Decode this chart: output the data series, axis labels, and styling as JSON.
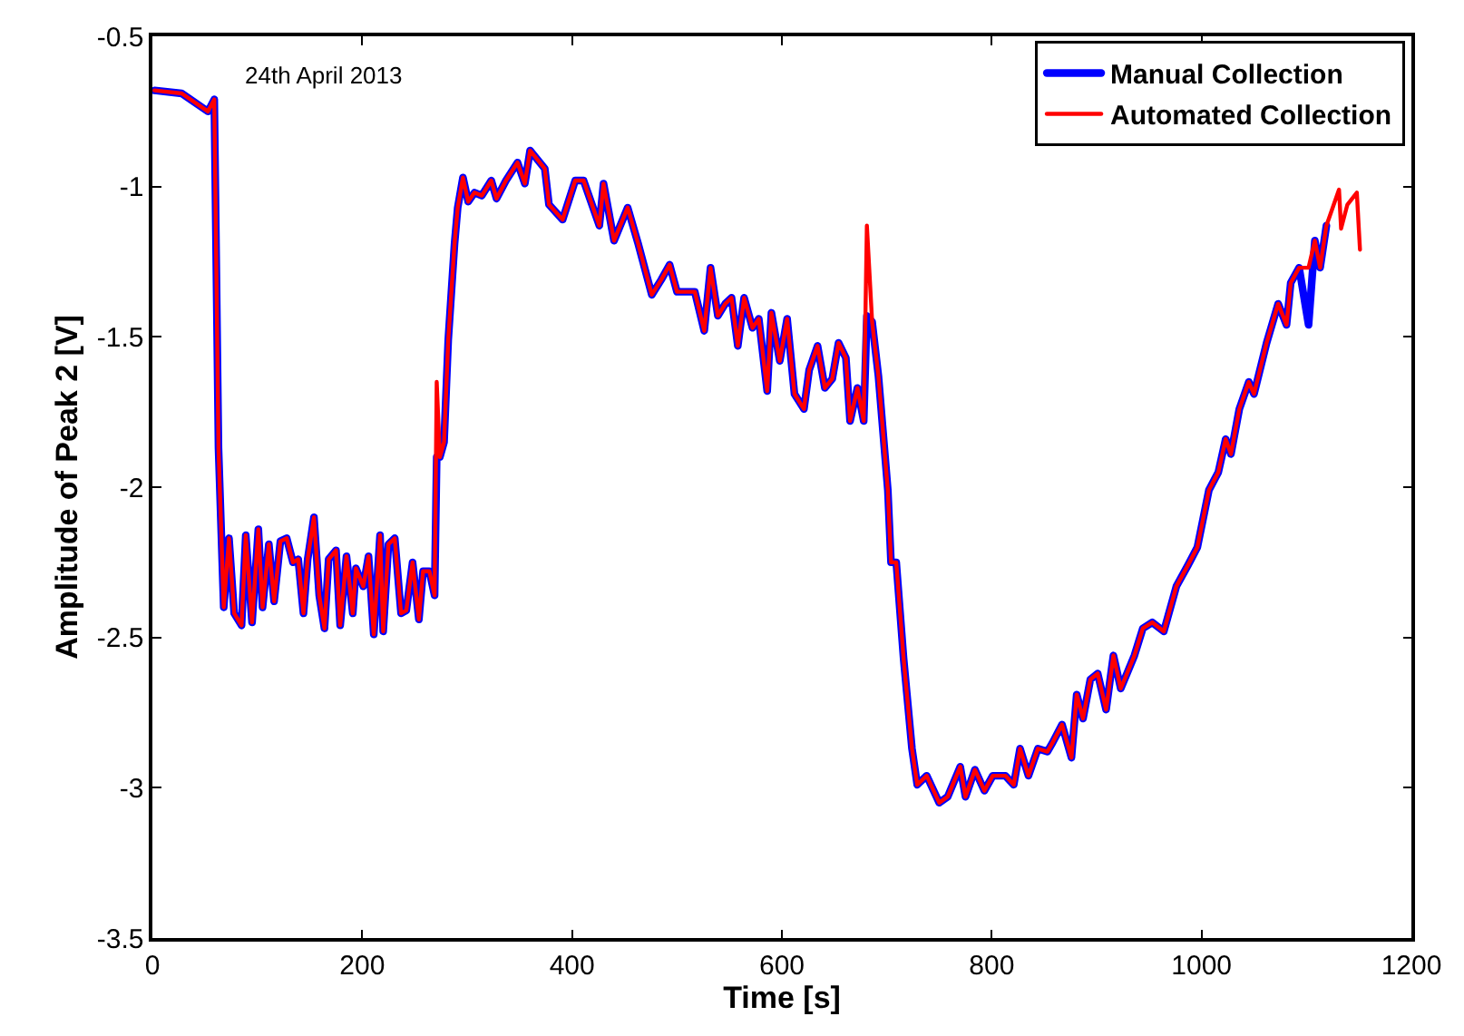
{
  "chart_data": {
    "type": "line",
    "xlabel": "Time [s]",
    "ylabel": "Amplitude of Peak 2 [V]",
    "annotations": [
      "24th April 2013"
    ],
    "x": [
      2,
      28,
      53,
      59,
      63,
      68,
      73,
      78,
      85,
      89,
      95,
      101,
      105,
      111,
      116,
      122,
      128,
      134,
      139,
      144,
      148,
      154,
      159,
      164,
      168,
      175,
      179,
      185,
      191,
      194,
      201,
      206,
      211,
      217,
      220,
      225,
      231,
      237,
      242,
      248,
      254,
      258,
      264,
      269,
      271,
      274,
      278,
      282,
      288,
      291,
      296,
      301,
      307,
      314,
      323,
      328,
      337,
      348,
      355,
      360,
      374,
      378,
      391,
      403,
      411,
      426,
      430,
      440,
      453,
      463,
      476,
      485,
      493,
      500,
      517,
      526,
      532,
      539,
      546,
      552,
      558,
      564,
      572,
      578,
      586,
      590,
      598,
      605,
      612,
      621,
      626,
      634,
      641,
      648,
      654,
      661,
      665,
      672,
      678,
      681,
      686,
      692,
      701,
      704,
      709,
      716,
      724,
      729,
      738,
      750,
      758,
      770,
      775,
      784,
      793,
      801,
      813,
      821,
      827,
      835,
      844,
      853,
      858,
      867,
      876,
      881,
      887,
      894,
      901,
      909,
      916,
      923,
      936,
      944,
      953,
      964,
      976,
      987,
      996,
      1007,
      1016,
      1023,
      1028,
      1036,
      1045,
      1050,
      1062,
      1073,
      1081,
      1085,
      1093,
      1102,
      1108,
      1113,
      1119,
      1131,
      1133,
      1139,
      1148,
      1151
    ],
    "xlim": [
      0,
      1200
    ],
    "xticks": [
      0,
      200,
      400,
      600,
      800,
      1000,
      1200
    ],
    "ylim": [
      -3.5,
      -0.5
    ],
    "yticks": [
      -3.5,
      -3,
      -2.5,
      -2,
      -1.5,
      -1,
      -0.5
    ],
    "grid": false,
    "legend": "top right",
    "line_style": "solid",
    "marker": "none",
    "series": [
      {
        "name": "Manual Collection",
        "color": "#0000ff",
        "values": [
          -0.68,
          -0.69,
          -0.75,
          -0.71,
          -1.87,
          -2.4,
          -2.17,
          -2.42,
          -2.46,
          -2.16,
          -2.45,
          -2.14,
          -2.4,
          -2.19,
          -2.38,
          -2.18,
          -2.17,
          -2.25,
          -2.24,
          -2.42,
          -2.24,
          -2.1,
          -2.36,
          -2.47,
          -2.24,
          -2.21,
          -2.46,
          -2.23,
          -2.42,
          -2.27,
          -2.33,
          -2.23,
          -2.49,
          -2.16,
          -2.48,
          -2.19,
          -2.17,
          -2.42,
          -2.41,
          -2.25,
          -2.44,
          -2.28,
          -2.28,
          -2.36,
          -1.9,
          -1.9,
          -1.85,
          -1.51,
          -1.19,
          -1.07,
          -0.97,
          -1.05,
          -1.02,
          -1.03,
          -0.98,
          -1.04,
          -0.98,
          -0.92,
          -0.99,
          -0.88,
          -0.94,
          -1.06,
          -1.11,
          -0.98,
          -0.98,
          -1.13,
          -0.99,
          -1.18,
          -1.07,
          -1.19,
          -1.36,
          -1.31,
          -1.26,
          -1.35,
          -1.35,
          -1.48,
          -1.27,
          -1.43,
          -1.39,
          -1.37,
          -1.53,
          -1.37,
          -1.47,
          -1.44,
          -1.68,
          -1.42,
          -1.58,
          -1.44,
          -1.69,
          -1.74,
          -1.61,
          -1.53,
          -1.67,
          -1.64,
          -1.52,
          -1.57,
          -1.78,
          -1.67,
          -1.78,
          -1.43,
          -1.45,
          -1.63,
          -2.01,
          -2.25,
          -2.25,
          -2.57,
          -2.87,
          -2.99,
          -2.96,
          -3.05,
          -3.03,
          -2.93,
          -3.03,
          -2.94,
          -3.01,
          -2.96,
          -2.96,
          -2.99,
          -2.87,
          -2.96,
          -2.87,
          -2.88,
          -2.85,
          -2.79,
          -2.9,
          -2.69,
          -2.77,
          -2.64,
          -2.62,
          -2.74,
          -2.56,
          -2.67,
          -2.56,
          -2.47,
          -2.45,
          -2.48,
          -2.33,
          -2.26,
          -2.2,
          -2.01,
          -1.95,
          -1.84,
          -1.89,
          -1.74,
          -1.65,
          -1.69,
          -1.52,
          -1.39,
          -1.46,
          -1.32,
          -1.27,
          -1.46,
          -1.18,
          -1.27,
          -1.13,
          null,
          null,
          null,
          null,
          null
        ]
      },
      {
        "name": "Automated Collection",
        "color": "#ff0000",
        "values": [
          -0.68,
          -0.69,
          -0.75,
          -0.71,
          -1.87,
          -2.4,
          -2.17,
          -2.42,
          -2.46,
          -2.16,
          -2.45,
          -2.14,
          -2.4,
          -2.19,
          -2.38,
          -2.18,
          -2.17,
          -2.25,
          -2.24,
          -2.42,
          -2.24,
          -2.1,
          -2.36,
          -2.47,
          -2.24,
          -2.21,
          -2.46,
          -2.23,
          -2.42,
          -2.27,
          -2.33,
          -2.23,
          -2.49,
          -2.16,
          -2.48,
          -2.19,
          -2.17,
          -2.42,
          -2.41,
          -2.25,
          -2.44,
          -2.28,
          -2.28,
          -2.36,
          -1.65,
          -1.9,
          -1.85,
          -1.51,
          -1.19,
          -1.07,
          -0.97,
          -1.05,
          -1.02,
          -1.03,
          -0.98,
          -1.04,
          -0.98,
          -0.92,
          -0.99,
          -0.88,
          -0.94,
          -1.06,
          -1.11,
          -0.98,
          -0.98,
          -1.13,
          -0.99,
          -1.18,
          -1.07,
          -1.19,
          -1.36,
          -1.31,
          -1.26,
          -1.35,
          -1.35,
          -1.48,
          -1.27,
          -1.43,
          -1.39,
          -1.37,
          -1.53,
          -1.37,
          -1.47,
          -1.44,
          -1.68,
          -1.42,
          -1.58,
          -1.44,
          -1.69,
          -1.74,
          -1.61,
          -1.53,
          -1.67,
          -1.64,
          -1.52,
          -1.57,
          -1.78,
          -1.67,
          -1.78,
          -1.13,
          -1.45,
          -1.63,
          -2.01,
          -2.25,
          -2.25,
          -2.57,
          -2.87,
          -2.99,
          -2.96,
          -3.05,
          -3.03,
          -2.93,
          -3.03,
          -2.94,
          -3.01,
          -2.96,
          -2.96,
          -2.99,
          -2.87,
          -2.96,
          -2.87,
          -2.88,
          -2.85,
          -2.79,
          -2.9,
          -2.69,
          -2.77,
          -2.64,
          -2.62,
          -2.74,
          -2.56,
          -2.67,
          -2.56,
          -2.47,
          -2.45,
          -2.48,
          -2.33,
          -2.26,
          -2.2,
          -2.01,
          -1.95,
          -1.84,
          -1.89,
          -1.74,
          -1.65,
          -1.69,
          -1.52,
          -1.39,
          -1.46,
          -1.32,
          -1.27,
          -1.27,
          -1.18,
          -1.27,
          -1.13,
          -1.01,
          -1.14,
          -1.06,
          -1.02,
          -1.21
        ]
      }
    ]
  }
}
